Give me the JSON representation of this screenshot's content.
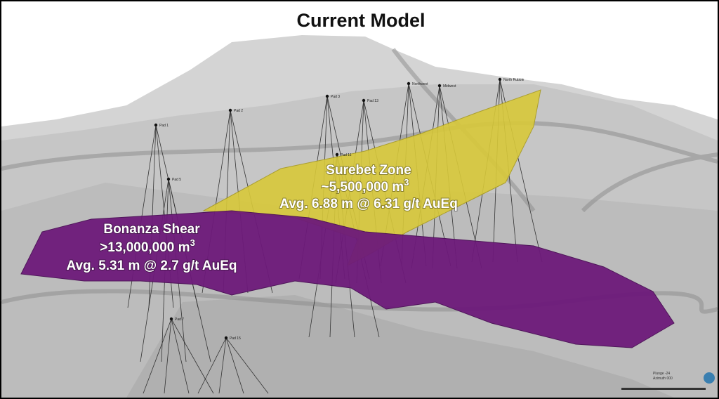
{
  "header": {
    "title": "Current Model"
  },
  "zones": [
    {
      "name": "Surebet Zone",
      "volume": "~5,500,000 m",
      "volume_exponent": "3",
      "grade": "Avg. 6.88 m @ 6.31 g/t AuEq"
    },
    {
      "name": "Bonanza Shear",
      "volume": ">13,000,000 m",
      "volume_exponent": "3",
      "grade": "Avg. 5.31 m @ 2.7 g/t AuEq"
    }
  ],
  "pads": [
    "Pad 1",
    "Pad 2",
    "Pad 3",
    "Pad 5",
    "Pad 7",
    "Pad 11",
    "Pad 13",
    "Pad 15",
    "Northwest",
    "Midwest",
    "North Rubble"
  ],
  "view": {
    "plunge": "Plunge -24",
    "azimuth": "Azimuth 000"
  }
}
